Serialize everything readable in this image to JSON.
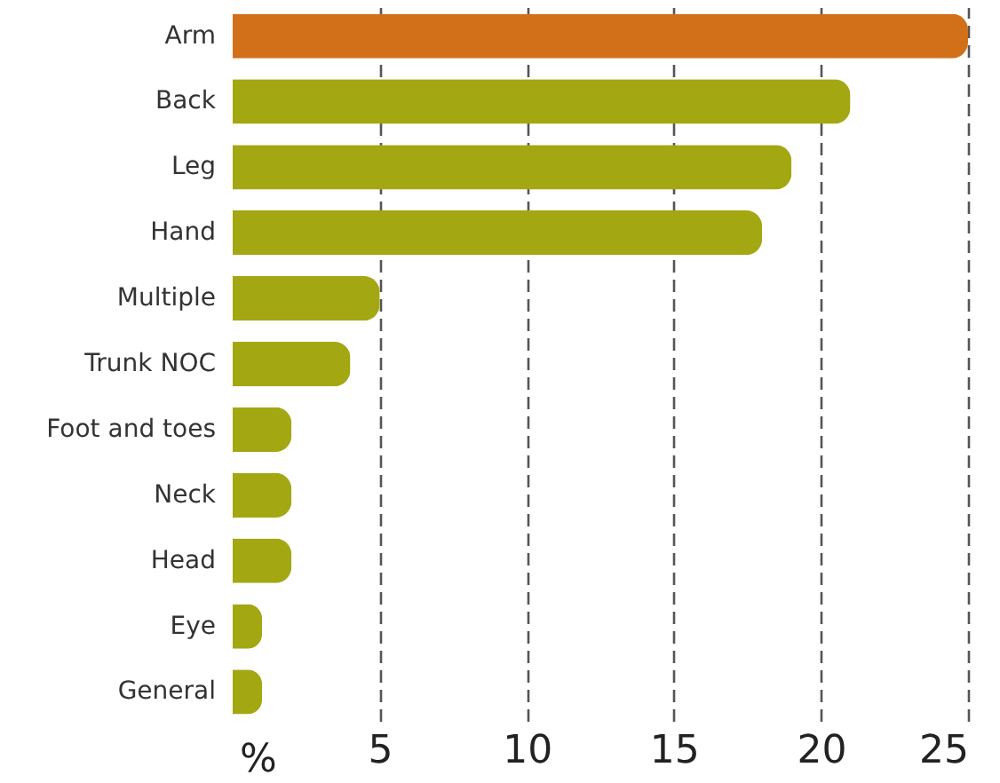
{
  "chart_data": {
    "type": "bar",
    "orientation": "horizontal",
    "xlabel": "%",
    "categories": [
      "Arm",
      "Back",
      "Leg",
      "Hand",
      "Multiple",
      "Trunk NOC",
      "Foot and toes",
      "Neck",
      "Head",
      "Eye",
      "General"
    ],
    "values": [
      25,
      21,
      19,
      18,
      5,
      4,
      2,
      2,
      2,
      1,
      1
    ],
    "colors": [
      "#d2701a",
      "#a3a711",
      "#a3a711",
      "#a3a711",
      "#a3a711",
      "#a3a711",
      "#a3a711",
      "#a3a711",
      "#a3a711",
      "#a3a711",
      "#a3a711"
    ],
    "xlim": [
      0,
      25
    ],
    "xticks": [
      5,
      10,
      15,
      20,
      25
    ],
    "grid": "x"
  }
}
